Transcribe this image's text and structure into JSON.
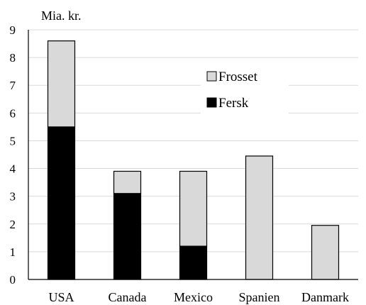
{
  "chart_data": {
    "type": "bar",
    "stacked": true,
    "y_unit_label": "Mia. kr.",
    "categories": [
      "USA",
      "Canada",
      "Mexico",
      "Spanien",
      "Danmark"
    ],
    "series": [
      {
        "name": "Fersk",
        "color": "#000000",
        "values": [
          5.5,
          3.1,
          1.2,
          0,
          0
        ]
      },
      {
        "name": "Frosset",
        "color": "#d9d9d9",
        "values": [
          3.1,
          0.8,
          2.7,
          4.45,
          1.95
        ]
      }
    ],
    "legend_order": [
      "Frosset",
      "Fersk"
    ],
    "legend_position": "upper-middle",
    "ylim": [
      0,
      9
    ],
    "yticks": [
      "0",
      "1",
      "2",
      "3",
      "4",
      "5",
      "6",
      "7",
      "8",
      "9"
    ],
    "grid": true
  }
}
